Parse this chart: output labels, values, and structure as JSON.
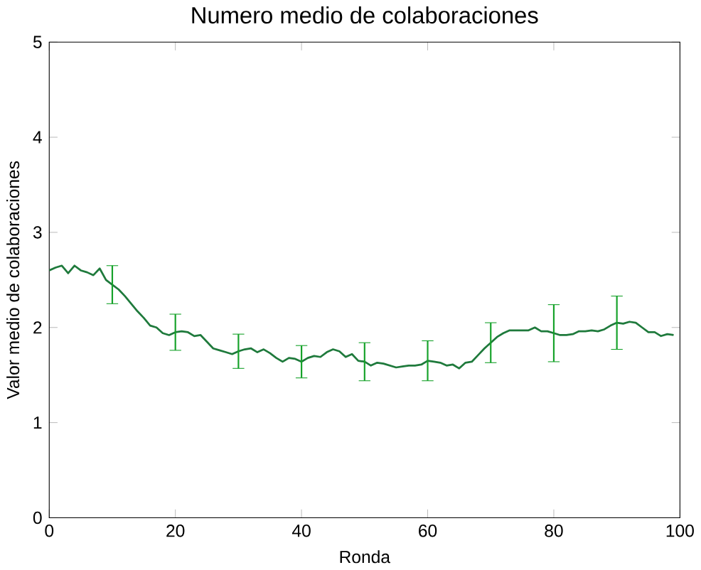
{
  "chart_data": {
    "type": "line",
    "title": "Numero medio de colaboraciones",
    "xlabel": "Ronda",
    "ylabel": "Valor medio de colaboraciones",
    "x": [
      0,
      1,
      2,
      3,
      4,
      5,
      6,
      7,
      8,
      9,
      10,
      11,
      12,
      13,
      14,
      15,
      16,
      17,
      18,
      19,
      20,
      21,
      22,
      23,
      24,
      25,
      26,
      27,
      28,
      29,
      30,
      31,
      32,
      33,
      34,
      35,
      36,
      37,
      38,
      39,
      40,
      41,
      42,
      43,
      44,
      45,
      46,
      47,
      48,
      49,
      50,
      51,
      52,
      53,
      54,
      55,
      56,
      57,
      58,
      59,
      60,
      61,
      62,
      63,
      64,
      65,
      66,
      67,
      68,
      69,
      70,
      71,
      72,
      73,
      74,
      75,
      76,
      77,
      78,
      79,
      80,
      81,
      82,
      83,
      84,
      85,
      86,
      87,
      88,
      89,
      90,
      91,
      92,
      93,
      94,
      95,
      96,
      97,
      98,
      99
    ],
    "series": [
      {
        "color": "#1f7a3c",
        "values": [
          2.6,
          2.63,
          2.65,
          2.57,
          2.65,
          2.6,
          2.58,
          2.55,
          2.62,
          2.5,
          2.45,
          2.4,
          2.33,
          2.25,
          2.17,
          2.1,
          2.02,
          2.0,
          1.94,
          1.92,
          1.95,
          1.96,
          1.95,
          1.91,
          1.92,
          1.85,
          1.78,
          1.76,
          1.74,
          1.72,
          1.75,
          1.77,
          1.78,
          1.74,
          1.77,
          1.73,
          1.68,
          1.64,
          1.68,
          1.67,
          1.64,
          1.68,
          1.7,
          1.69,
          1.74,
          1.77,
          1.75,
          1.69,
          1.72,
          1.65,
          1.64,
          1.6,
          1.63,
          1.62,
          1.6,
          1.58,
          1.59,
          1.6,
          1.6,
          1.61,
          1.65,
          1.64,
          1.63,
          1.6,
          1.61,
          1.57,
          1.63,
          1.64,
          1.71,
          1.78,
          1.84,
          1.9,
          1.94,
          1.97,
          1.97,
          1.97,
          1.97,
          2.0,
          1.96,
          1.96,
          1.94,
          1.92,
          1.92,
          1.93,
          1.96,
          1.96,
          1.97,
          1.96,
          1.98,
          2.02,
          2.05,
          2.04,
          2.06,
          2.05,
          2.0,
          1.95,
          1.95,
          1.91,
          1.93,
          1.92
        ],
        "errors": [
          null,
          null,
          null,
          null,
          null,
          null,
          null,
          null,
          null,
          null,
          0.2,
          null,
          null,
          null,
          null,
          null,
          null,
          null,
          null,
          null,
          0.19,
          null,
          null,
          null,
          null,
          null,
          null,
          null,
          null,
          null,
          0.18,
          null,
          null,
          null,
          null,
          null,
          null,
          null,
          null,
          null,
          0.17,
          null,
          null,
          null,
          null,
          null,
          null,
          null,
          null,
          null,
          0.2,
          null,
          null,
          null,
          null,
          null,
          null,
          null,
          null,
          null,
          0.21,
          null,
          null,
          null,
          null,
          null,
          null,
          null,
          null,
          null,
          0.21,
          null,
          null,
          null,
          null,
          null,
          null,
          null,
          null,
          null,
          0.3,
          null,
          null,
          null,
          null,
          null,
          null,
          null,
          null,
          null,
          0.28,
          null,
          null,
          null,
          null,
          null,
          null,
          null,
          null,
          null
        ]
      }
    ],
    "xlim": [
      0,
      100
    ],
    "ylim": [
      0,
      5
    ],
    "xticks": [
      0,
      20,
      40,
      60,
      80,
      100
    ],
    "yticks": [
      0,
      1,
      2,
      3,
      4,
      5
    ],
    "grid": false,
    "marker": "none",
    "line_style": "solid"
  }
}
